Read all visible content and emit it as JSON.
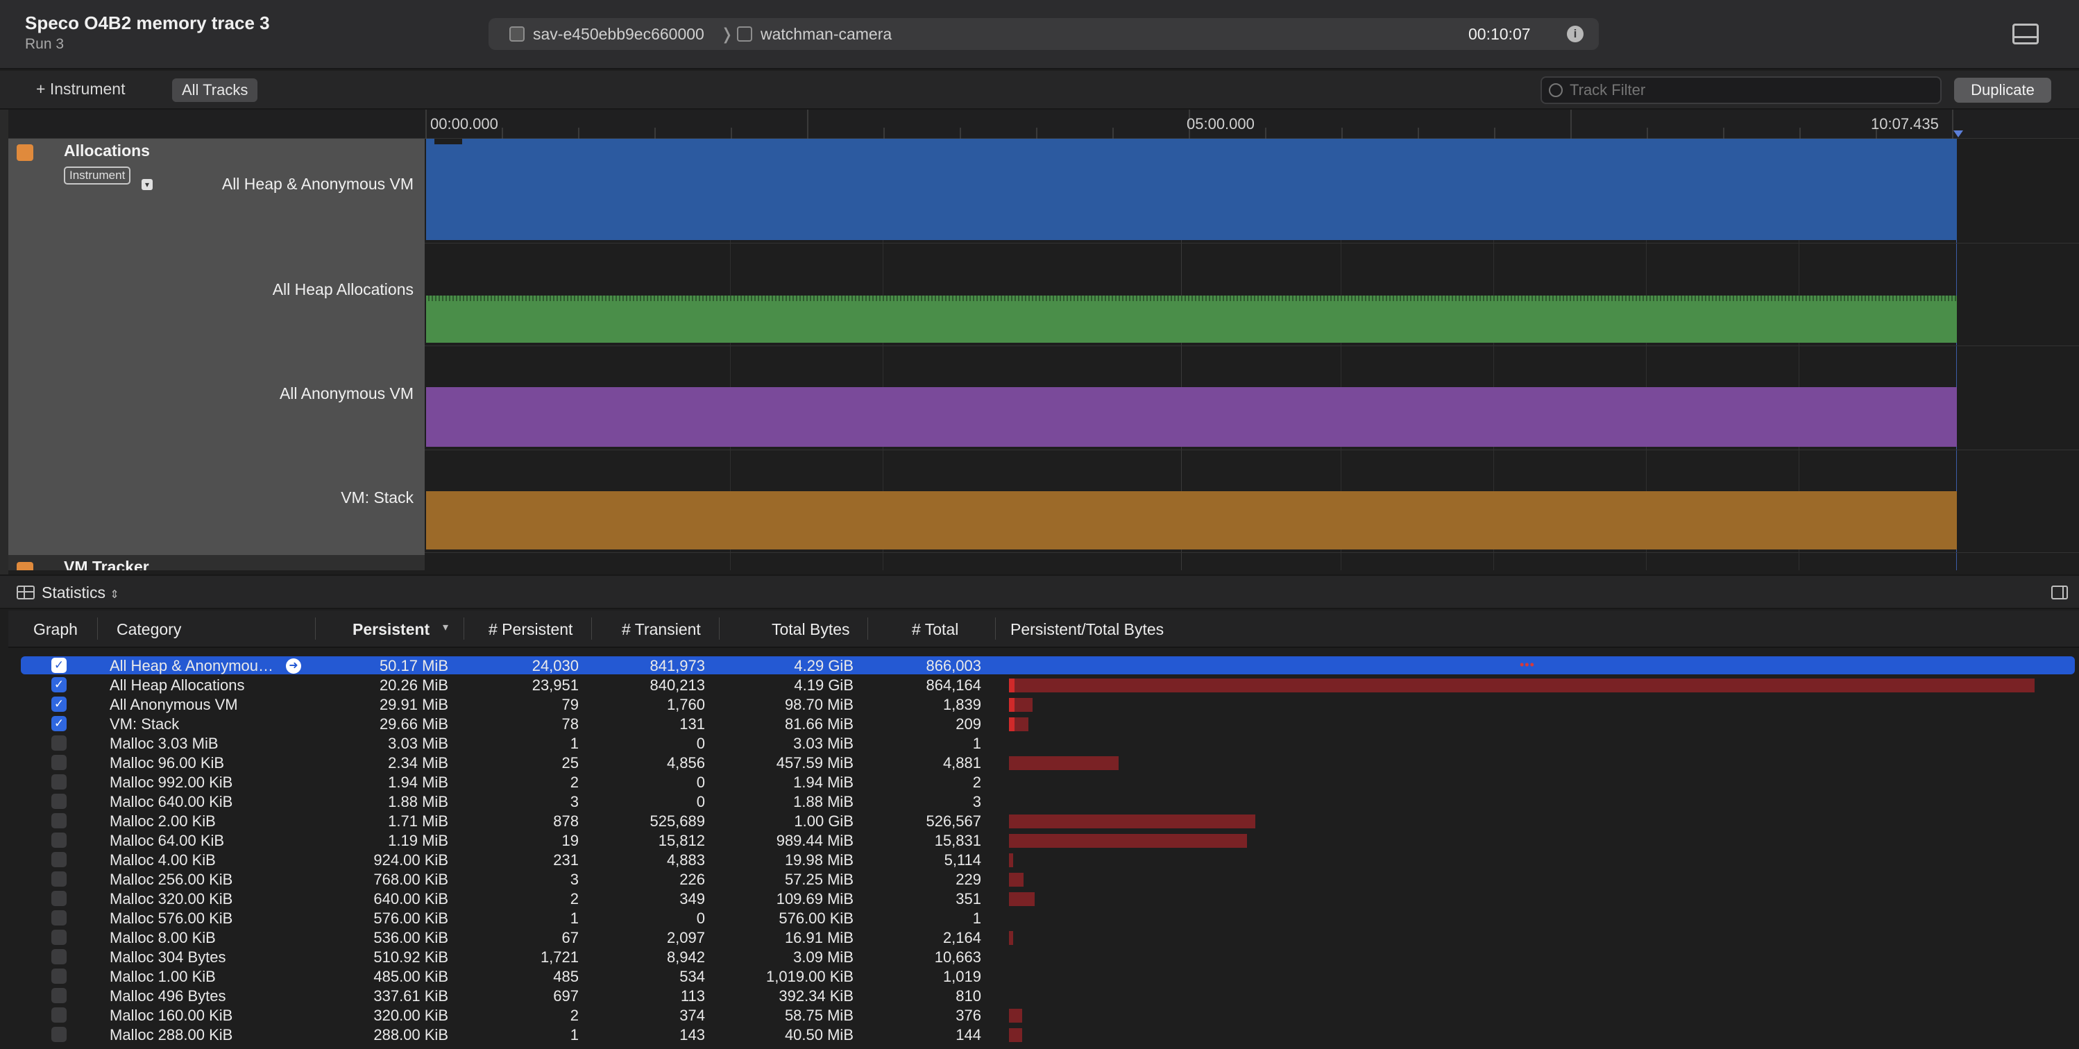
{
  "window": {
    "title": "Speco O4B2 memory trace 3",
    "subtitle": "Run 3",
    "device": "sav-e450ebb9ec660000",
    "process": "watchman-camera",
    "elapsed": "00:10:07"
  },
  "toolbar": {
    "add_instrument": "Instrument",
    "all_tracks": "All Tracks",
    "filter_placeholder": "Track Filter",
    "duplicate": "Duplicate"
  },
  "timeline": {
    "ticks": [
      "00:00.000",
      "05:00.000",
      "10:07.435"
    ],
    "instrument": {
      "name": "Allocations",
      "badge": "Instrument"
    },
    "next_instrument": "VM Tracker",
    "tracks": [
      {
        "label": "All Heap & Anonymous VM",
        "color": "#2c5aa0"
      },
      {
        "label": "All Heap Allocations",
        "color": "#4a8e49"
      },
      {
        "label": "All Anonymous VM",
        "color": "#7a4a9a"
      },
      {
        "label": "VM: Stack",
        "color": "#9c6a29"
      }
    ]
  },
  "statistics": {
    "label": "Statistics",
    "columns": [
      "Graph",
      "Category",
      "Persistent",
      "# Persistent",
      "# Transient",
      "Total Bytes",
      "# Total",
      "Persistent/Total Bytes"
    ],
    "rows": [
      {
        "checked": true,
        "selected": true,
        "category": "All Heap & Anonymou…",
        "persistent": "50.17 MiB",
        "n_persistent": "24,030",
        "n_transient": "841,973",
        "total_bytes": "4.29 GiB",
        "n_total": "866,003",
        "ratio": 0
      },
      {
        "checked": true,
        "category": "All Heap Allocations",
        "persistent": "20.26 MiB",
        "n_persistent": "23,951",
        "n_transient": "840,213",
        "total_bytes": "4.19 GiB",
        "n_total": "864,164",
        "ratio": 1.0
      },
      {
        "checked": true,
        "category": "All Anonymous VM",
        "persistent": "29.91 MiB",
        "n_persistent": "79",
        "n_transient": "1,760",
        "total_bytes": "98.70 MiB",
        "n_total": "1,839",
        "ratio": 0.023
      },
      {
        "checked": true,
        "category": "VM: Stack",
        "persistent": "29.66 MiB",
        "n_persistent": "78",
        "n_transient": "131",
        "total_bytes": "81.66 MiB",
        "n_total": "209",
        "ratio": 0.019
      },
      {
        "checked": false,
        "category": "Malloc 3.03 MiB",
        "persistent": "3.03 MiB",
        "n_persistent": "1",
        "n_transient": "0",
        "total_bytes": "3.03 MiB",
        "n_total": "1",
        "ratio": 0
      },
      {
        "checked": false,
        "category": "Malloc 96.00 KiB",
        "persistent": "2.34 MiB",
        "n_persistent": "25",
        "n_transient": "4,856",
        "total_bytes": "457.59 MiB",
        "n_total": "4,881",
        "ratio": 0.107
      },
      {
        "checked": false,
        "category": "Malloc 992.00 KiB",
        "persistent": "1.94 MiB",
        "n_persistent": "2",
        "n_transient": "0",
        "total_bytes": "1.94 MiB",
        "n_total": "2",
        "ratio": 0
      },
      {
        "checked": false,
        "category": "Malloc 640.00 KiB",
        "persistent": "1.88 MiB",
        "n_persistent": "3",
        "n_transient": "0",
        "total_bytes": "1.88 MiB",
        "n_total": "3",
        "ratio": 0
      },
      {
        "checked": false,
        "category": "Malloc 2.00 KiB",
        "persistent": "1.71 MiB",
        "n_persistent": "878",
        "n_transient": "525,689",
        "total_bytes": "1.00 GiB",
        "n_total": "526,567",
        "ratio": 0.24
      },
      {
        "checked": false,
        "category": "Malloc 64.00 KiB",
        "persistent": "1.19 MiB",
        "n_persistent": "19",
        "n_transient": "15,812",
        "total_bytes": "989.44 MiB",
        "n_total": "15,831",
        "ratio": 0.232
      },
      {
        "checked": false,
        "category": "Malloc 4.00 KiB",
        "persistent": "924.00 KiB",
        "n_persistent": "231",
        "n_transient": "4,883",
        "total_bytes": "19.98 MiB",
        "n_total": "5,114",
        "ratio": 0.004
      },
      {
        "checked": false,
        "category": "Malloc 256.00 KiB",
        "persistent": "768.00 KiB",
        "n_persistent": "3",
        "n_transient": "226",
        "total_bytes": "57.25 MiB",
        "n_total": "229",
        "ratio": 0.014
      },
      {
        "checked": false,
        "category": "Malloc 320.00 KiB",
        "persistent": "640.00 KiB",
        "n_persistent": "2",
        "n_transient": "349",
        "total_bytes": "109.69 MiB",
        "n_total": "351",
        "ratio": 0.025
      },
      {
        "checked": false,
        "category": "Malloc 576.00 KiB",
        "persistent": "576.00 KiB",
        "n_persistent": "1",
        "n_transient": "0",
        "total_bytes": "576.00 KiB",
        "n_total": "1",
        "ratio": 0
      },
      {
        "checked": false,
        "category": "Malloc 8.00 KiB",
        "persistent": "536.00 KiB",
        "n_persistent": "67",
        "n_transient": "2,097",
        "total_bytes": "16.91 MiB",
        "n_total": "2,164",
        "ratio": 0.004
      },
      {
        "checked": false,
        "category": "Malloc 304 Bytes",
        "persistent": "510.92 KiB",
        "n_persistent": "1,721",
        "n_transient": "8,942",
        "total_bytes": "3.09 MiB",
        "n_total": "10,663",
        "ratio": 0
      },
      {
        "checked": false,
        "category": "Malloc 1.00 KiB",
        "persistent": "485.00 KiB",
        "n_persistent": "485",
        "n_transient": "534",
        "total_bytes": "1,019.00 KiB",
        "n_total": "1,019",
        "ratio": 0
      },
      {
        "checked": false,
        "category": "Malloc 496 Bytes",
        "persistent": "337.61 KiB",
        "n_persistent": "697",
        "n_transient": "113",
        "total_bytes": "392.34 KiB",
        "n_total": "810",
        "ratio": 0
      },
      {
        "checked": false,
        "category": "Malloc 160.00 KiB",
        "persistent": "320.00 KiB",
        "n_persistent": "2",
        "n_transient": "374",
        "total_bytes": "58.75 MiB",
        "n_total": "376",
        "ratio": 0.013
      },
      {
        "checked": false,
        "category": "Malloc 288.00 KiB",
        "persistent": "288.00 KiB",
        "n_persistent": "1",
        "n_transient": "143",
        "total_bytes": "40.50 MiB",
        "n_total": "144",
        "ratio": 0.013
      }
    ]
  },
  "colors": {
    "accent": "#2459d3",
    "bar": "#7a2225",
    "bar_highlight": "#d02a2a"
  }
}
